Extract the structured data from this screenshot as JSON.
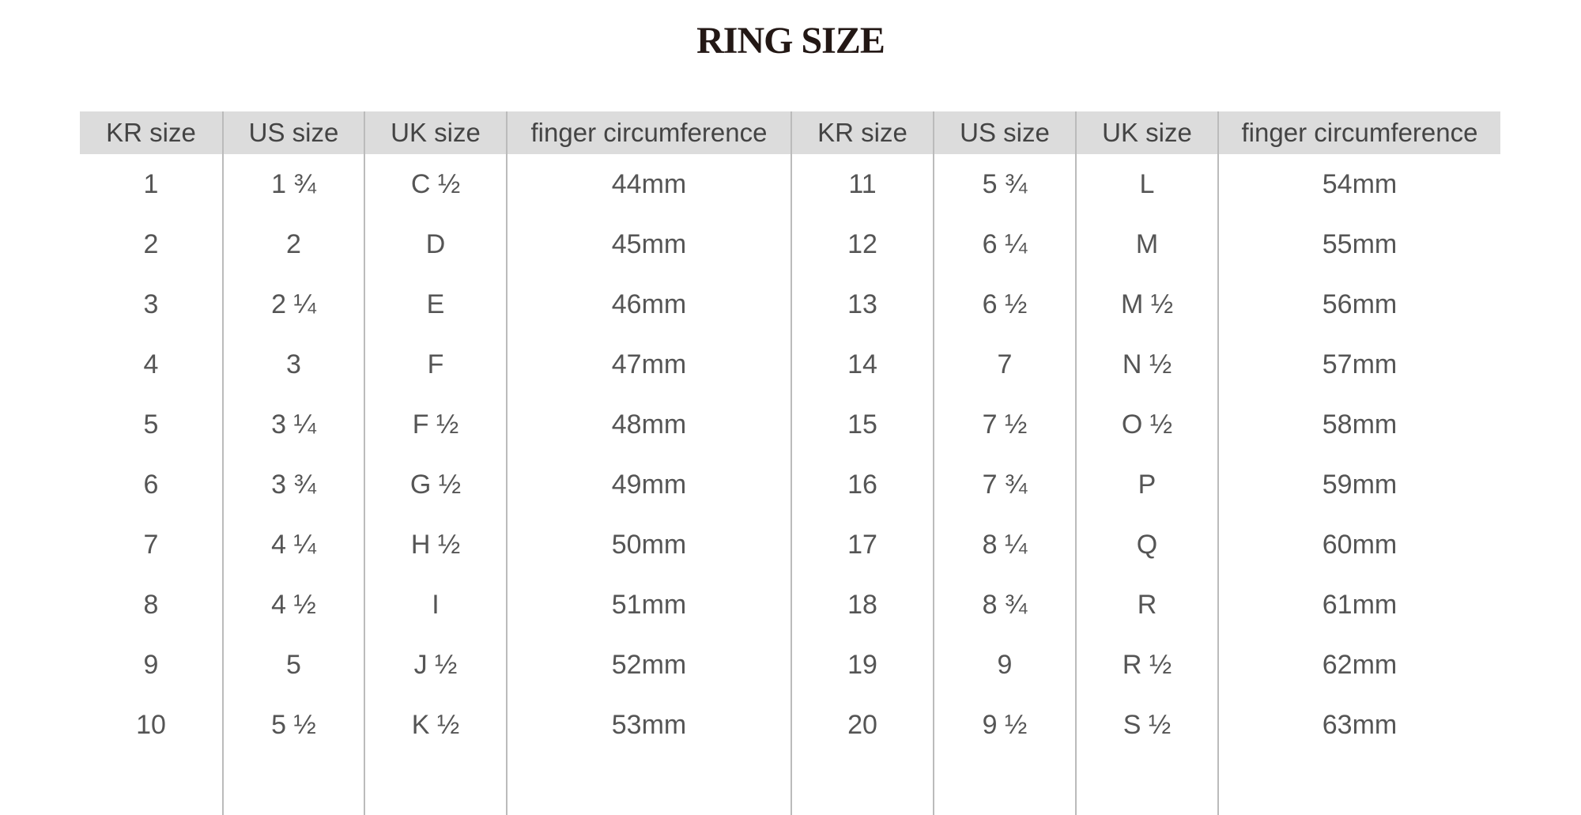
{
  "title": "RING SIZE",
  "headers": [
    "KR size",
    "US size",
    "UK size",
    "finger circumference",
    "KR size",
    "US size",
    "UK size",
    "finger circumference"
  ],
  "rows": [
    [
      "1",
      "1 ¾",
      "C ½",
      "44mm",
      "11",
      "5 ¾",
      "L",
      "54mm"
    ],
    [
      "2",
      "2",
      "D",
      "45mm",
      "12",
      "6 ¼",
      "M",
      "55mm"
    ],
    [
      "3",
      "2 ¼",
      "E",
      "46mm",
      "13",
      "6 ½",
      "M ½",
      "56mm"
    ],
    [
      "4",
      "3",
      "F",
      "47mm",
      "14",
      "7",
      "N ½",
      "57mm"
    ],
    [
      "5",
      "3 ¼",
      "F ½",
      "48mm",
      "15",
      "7 ½",
      "O ½",
      "58mm"
    ],
    [
      "6",
      "3 ¾",
      "G ½",
      "49mm",
      "16",
      "7 ¾",
      "P",
      "59mm"
    ],
    [
      "7",
      "4 ¼",
      "H ½",
      "50mm",
      "17",
      "8 ¼",
      "Q",
      "60mm"
    ],
    [
      "8",
      "4 ½",
      "I",
      "51mm",
      "18",
      "8 ¾",
      "R",
      "61mm"
    ],
    [
      "9",
      "5",
      "J ½",
      "52mm",
      "19",
      "9",
      "R ½",
      "62mm"
    ],
    [
      "10",
      "5 ½",
      "K ½",
      "53mm",
      "20",
      "9 ½",
      "S ½",
      "63mm"
    ]
  ]
}
